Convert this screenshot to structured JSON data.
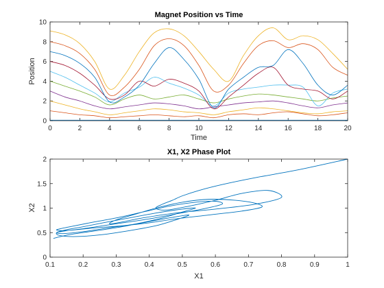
{
  "chart_data": [
    {
      "type": "line",
      "title": "Magnet Position vs Time",
      "xlabel": "Time",
      "ylabel": "Position",
      "xlim": [
        0,
        20
      ],
      "ylim": [
        0,
        10
      ],
      "xticks": [
        0,
        2,
        4,
        6,
        8,
        10,
        12,
        14,
        16,
        18,
        20
      ],
      "yticks": [
        0,
        2,
        4,
        6,
        8,
        10
      ],
      "grid": false,
      "series": [
        {
          "color": "#0072BD",
          "x": [
            0,
            20
          ],
          "y": [
            0.05,
            0.05
          ]
        },
        {
          "color": "#D95319",
          "x": [
            0,
            1,
            2,
            3,
            4,
            5,
            6,
            7,
            8,
            9,
            10,
            11,
            12,
            13,
            14,
            15,
            16,
            17,
            18,
            19,
            20
          ],
          "y": [
            1,
            0.8,
            0.6,
            0.5,
            0.3,
            0.4,
            0.5,
            0.6,
            0.5,
            0.4,
            0.5,
            0.3,
            0.6,
            0.7,
            0.6,
            0.8,
            0.9,
            0.7,
            0.5,
            0.6,
            0.8
          ]
        },
        {
          "color": "#EDB120",
          "x": [
            0,
            1,
            2,
            3,
            4,
            5,
            6,
            7,
            8,
            9,
            10,
            11,
            12,
            13,
            14,
            15,
            16,
            17,
            18,
            19,
            20
          ],
          "y": [
            2,
            1.6,
            1.2,
            0.9,
            0.6,
            0.8,
            1.0,
            1.2,
            1.1,
            0.9,
            0.8,
            0.6,
            0.9,
            1.1,
            1.3,
            1.2,
            1.0,
            0.8,
            0.7,
            0.9,
            1.0
          ]
        },
        {
          "color": "#7E2F8E",
          "x": [
            0,
            1,
            2,
            3,
            4,
            5,
            6,
            7,
            8,
            9,
            10,
            11,
            12,
            13,
            14,
            15,
            16,
            17,
            18,
            19,
            20
          ],
          "y": [
            3,
            2.4,
            2,
            1.5,
            1.2,
            1.4,
            1.6,
            1.8,
            1.7,
            1.5,
            1.2,
            1.4,
            1.6,
            1.8,
            1.9,
            2.0,
            1.8,
            1.5,
            1.3,
            1.6,
            1.8
          ]
        },
        {
          "color": "#77AC30",
          "x": [
            0,
            1,
            2,
            3,
            4,
            5,
            6,
            7,
            8,
            9,
            10,
            11,
            12,
            13,
            14,
            15,
            16,
            17,
            18,
            19,
            20
          ],
          "y": [
            4,
            3.5,
            3,
            2.4,
            1.6,
            2.2,
            2.6,
            2.2,
            2.4,
            2.6,
            2.2,
            1.8,
            2.2,
            2.5,
            2.7,
            2.6,
            2.4,
            2.2,
            2.0,
            2.3,
            2.5
          ]
        },
        {
          "color": "#4DBEEE",
          "x": [
            0,
            1,
            2,
            3,
            4,
            5,
            6,
            7,
            8,
            9,
            10,
            11,
            12,
            13,
            14,
            15,
            16,
            17,
            18,
            19,
            20
          ],
          "y": [
            5,
            4.4,
            3.6,
            2.8,
            1.9,
            2.8,
            3.4,
            4.4,
            3.8,
            3.3,
            2.6,
            1.5,
            2.8,
            3.2,
            3.4,
            3.6,
            3.6,
            3.4,
            1.5,
            2.8,
            3.2
          ]
        },
        {
          "color": "#A2142F",
          "x": [
            0,
            1,
            2,
            3,
            4,
            5,
            6,
            7,
            8,
            9,
            10,
            11,
            12,
            13,
            14,
            15,
            16,
            17,
            18,
            19,
            20
          ],
          "y": [
            6,
            5.6,
            4.8,
            3.6,
            2.2,
            2.6,
            4.0,
            3.5,
            4.2,
            3.8,
            3.0,
            1.2,
            2.4,
            3.6,
            4.8,
            5.4,
            3.6,
            3.2,
            3.0,
            2.2,
            3.0
          ]
        },
        {
          "color": "#0072BD",
          "x": [
            0,
            1,
            2,
            3,
            4,
            5,
            6,
            7,
            8,
            9,
            10,
            11,
            12,
            13,
            14,
            15,
            16,
            17,
            18,
            19,
            20
          ],
          "y": [
            7,
            6.6,
            5.8,
            4.4,
            1.9,
            2.4,
            3.6,
            5.8,
            7.4,
            6.2,
            4.2,
            1.3,
            3.2,
            4.4,
            5.4,
            5.6,
            7.2,
            5.8,
            3.6,
            2.6,
            3.6
          ]
        },
        {
          "color": "#D95319",
          "x": [
            0,
            1,
            2,
            3,
            4,
            5,
            6,
            7,
            8,
            9,
            10,
            11,
            12,
            13,
            14,
            15,
            16,
            17,
            18,
            19,
            20
          ],
          "y": [
            8,
            7.6,
            6.8,
            5.2,
            2.6,
            3.4,
            5.2,
            7.6,
            8.3,
            7.6,
            5.6,
            3.0,
            3.6,
            5.8,
            7.6,
            8.1,
            7.4,
            7.8,
            7.2,
            5.4,
            4.6
          ]
        },
        {
          "color": "#EDB120",
          "x": [
            0,
            1,
            2,
            3,
            4,
            5,
            6,
            7,
            8,
            9,
            10,
            11,
            12,
            13,
            14,
            15,
            16,
            17,
            18,
            19,
            20
          ],
          "y": [
            9.1,
            8.7,
            7.8,
            6.0,
            3.2,
            4.6,
            7.0,
            8.9,
            9.3,
            8.6,
            7.0,
            5.2,
            4.0,
            6.6,
            8.6,
            9.4,
            8.2,
            8.6,
            8.2,
            6.8,
            5.2
          ]
        }
      ]
    },
    {
      "type": "line",
      "title": "X1, X2 Phase Plot",
      "xlabel": "X1",
      "ylabel": "X2",
      "xlim": [
        0.1,
        1
      ],
      "ylim": [
        0,
        2
      ],
      "xticks": [
        0.1,
        0.2,
        0.3,
        0.4,
        0.5,
        0.6,
        0.7,
        0.8,
        0.9,
        1
      ],
      "yticks": [
        0,
        0.5,
        1,
        1.5,
        2
      ],
      "grid": false,
      "series": [
        {
          "color": "#0072BD",
          "x": [
            1.0,
            0.85,
            0.72,
            0.62,
            0.55,
            0.5,
            0.47,
            0.44,
            0.42,
            0.45,
            0.52,
            0.6,
            0.68,
            0.76,
            0.8,
            0.72,
            0.6,
            0.48,
            0.38,
            0.32,
            0.28,
            0.3,
            0.36,
            0.42,
            0.5,
            0.58,
            0.66,
            0.72,
            0.74,
            0.68,
            0.58,
            0.48,
            0.4,
            0.32,
            0.24,
            0.18,
            0.14,
            0.12,
            0.16,
            0.22,
            0.3,
            0.38,
            0.46,
            0.54,
            0.6,
            0.62,
            0.56,
            0.48,
            0.4,
            0.32,
            0.26,
            0.2,
            0.15,
            0.12,
            0.14,
            0.2,
            0.28,
            0.36,
            0.44,
            0.5,
            0.54,
            0.5,
            0.42,
            0.34,
            0.26,
            0.2,
            0.15,
            0.12,
            0.13,
            0.18,
            0.26,
            0.34,
            0.42,
            0.48,
            0.52,
            0.46,
            0.38,
            0.3,
            0.22,
            0.16,
            0.12,
            0.11
          ],
          "y": [
            2.0,
            1.78,
            1.62,
            1.48,
            1.36,
            1.25,
            1.16,
            1.08,
            1.0,
            0.96,
            1.04,
            1.16,
            1.3,
            1.36,
            1.22,
            1.08,
            0.98,
            0.9,
            0.8,
            0.72,
            0.68,
            0.76,
            0.88,
            1.0,
            1.12,
            1.18,
            1.16,
            1.1,
            1.02,
            0.94,
            0.86,
            0.78,
            0.7,
            0.64,
            0.6,
            0.56,
            0.54,
            0.56,
            0.62,
            0.7,
            0.8,
            0.92,
            1.04,
            1.12,
            1.14,
            1.08,
            0.98,
            0.88,
            0.78,
            0.7,
            0.64,
            0.58,
            0.54,
            0.5,
            0.48,
            0.52,
            0.6,
            0.68,
            0.8,
            0.92,
            1.0,
            0.98,
            0.9,
            0.8,
            0.7,
            0.62,
            0.56,
            0.5,
            0.44,
            0.42,
            0.46,
            0.54,
            0.64,
            0.76,
            0.86,
            0.8,
            0.7,
            0.6,
            0.52,
            0.46,
            0.4,
            0.38
          ]
        }
      ]
    }
  ]
}
